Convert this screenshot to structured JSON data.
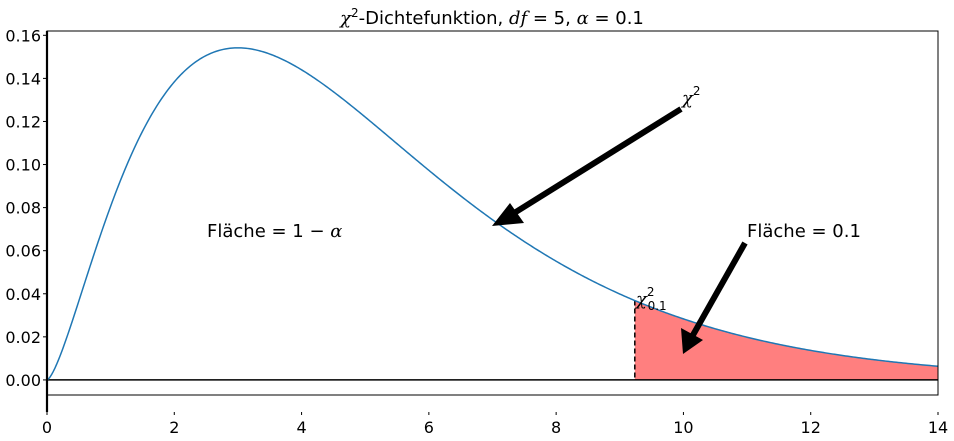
{
  "chart_data": {
    "type": "line",
    "title": {
      "chi": "χ",
      "chi_sup": "2",
      "text_mid": "-Dichtefunktion, ",
      "df_label": "df",
      "df_eq": " = 5, ",
      "alpha_label": "α",
      "alpha_eq": " = 0.1"
    },
    "df": 5,
    "alpha": 0.1,
    "critical_value": 9.236,
    "xlim": [
      0,
      14
    ],
    "ylim": [
      -0.007,
      0.162
    ],
    "x_ticks": [
      0,
      2,
      4,
      6,
      8,
      10,
      12,
      14
    ],
    "x_tick_labels": [
      "0",
      "2",
      "4",
      "6",
      "8",
      "10",
      "12",
      "14"
    ],
    "y_ticks": [
      0.0,
      0.02,
      0.04,
      0.06,
      0.08,
      0.1,
      0.12,
      0.14,
      0.16
    ],
    "y_tick_labels": [
      "0.00",
      "0.02",
      "0.04",
      "0.06",
      "0.08",
      "0.10",
      "0.12",
      "0.14",
      "0.16"
    ],
    "series": [
      {
        "x": [
          0,
          0.5,
          1,
          1.5,
          2,
          2.5,
          3,
          3.5,
          4,
          4.5,
          5,
          5.5,
          6,
          6.5,
          7,
          7.5,
          8,
          8.5,
          9,
          9.5,
          10,
          10.5,
          11,
          11.5,
          12,
          12.5,
          13,
          13.5,
          14
        ],
        "y": [
          0,
          0.0366,
          0.0807,
          0.1153,
          0.1384,
          0.1508,
          0.1542,
          0.1507,
          0.1439,
          0.1334,
          0.122,
          0.1097,
          0.0974,
          0.0856,
          0.0746,
          0.0646,
          0.0555,
          0.0475,
          0.0405,
          0.0343,
          0.0289,
          0.0243,
          0.0204,
          0.017,
          0.0142,
          0.0118,
          0.0098,
          0.0081,
          0.0066
        ]
      }
    ],
    "shaded_region": {
      "x_from": 9.236,
      "x_to": 14,
      "color": "#ff0000",
      "opacity": 0.5
    },
    "line_color": "#1f77b4",
    "annotations": {
      "chi_sq": {
        "text": "χ",
        "sup": "2"
      },
      "area_left": {
        "prefix": "Fläche = 1 − ",
        "alpha": "α"
      },
      "area_right": {
        "text": "Fläche = 0.1"
      },
      "critical_label": {
        "text": "χ",
        "sup": "2",
        "sub": "0.1"
      }
    },
    "grid": false
  }
}
